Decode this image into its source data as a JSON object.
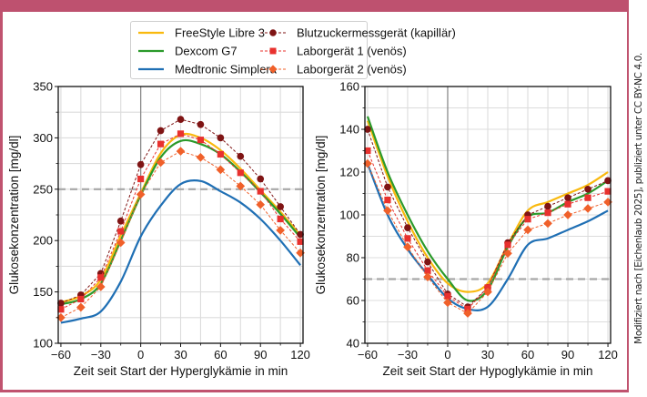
{
  "credit": "Modifiziert nach [Eichenlaub 2025], publiziert unter CC BY-NC 4.0.",
  "colors": {
    "frame": "#be516f",
    "libre": "#f9b90e",
    "dexcom": "#2b9a2b",
    "medtronic": "#1f6fb4",
    "blutzucker": "#7f1414",
    "labor1": "#e8312e",
    "labor2": "#f0602a",
    "threshold": "#a6a6a6"
  },
  "legend": {
    "items": [
      {
        "key": "libre",
        "label": "FreeStyle Libre 3",
        "style": "line"
      },
      {
        "key": "dexcom",
        "label": "Dexcom G7",
        "style": "line"
      },
      {
        "key": "medtronic",
        "label": "Medtronic Simplera",
        "style": "line"
      },
      {
        "key": "blutzucker",
        "label": "Blutzuckermessgerät (kapillär)",
        "style": "circle"
      },
      {
        "key": "labor1",
        "label": "Laborgerät 1 (venös)",
        "style": "square"
      },
      {
        "key": "labor2",
        "label": "Laborgerät 2 (venös)",
        "style": "diamond"
      }
    ]
  },
  "chart_data": [
    {
      "type": "line",
      "title": "",
      "xlabel": "Zeit seit Start der Hyperglykämie in min",
      "ylabel": "Glukosekonzentration [mg/dl]",
      "xlim": [
        -62,
        122
      ],
      "ylim": [
        100,
        350
      ],
      "xticks": [
        "-60",
        "-30",
        "0",
        "30",
        "60",
        "90",
        "120"
      ],
      "yticks": [
        "100",
        "150",
        "200",
        "250",
        "300",
        "350"
      ],
      "threshold": 250,
      "grid": true,
      "x": [
        -60,
        -45,
        -30,
        -15,
        0,
        15,
        30,
        45,
        60,
        75,
        90,
        105,
        120
      ],
      "series": [
        {
          "key": "libre",
          "name": "FreeStyle Libre 3",
          "values": [
            140,
            146,
            162,
            205,
            246,
            285,
            303,
            300,
            288,
            270,
            249,
            228,
            205
          ]
        },
        {
          "key": "dexcom",
          "name": "Dexcom G7",
          "values": [
            138,
            143,
            158,
            200,
            244,
            281,
            297,
            294,
            284,
            267,
            247,
            226,
            203
          ]
        },
        {
          "key": "medtronic",
          "name": "Medtronic Simplera",
          "values": [
            120,
            124,
            131,
            160,
            204,
            234,
            255,
            258,
            248,
            237,
            221,
            200,
            176
          ]
        },
        {
          "key": "blutzucker",
          "name": "Blutzuckermessgerät (kapillär)",
          "values": [
            139,
            147,
            168,
            219,
            274,
            307,
            318,
            313,
            300,
            282,
            260,
            233,
            206
          ]
        },
        {
          "key": "labor1",
          "name": "Laborgerät 1 (venös)",
          "values": [
            133,
            143,
            164,
            209,
            260,
            294,
            304,
            298,
            284,
            266,
            248,
            221,
            199
          ]
        },
        {
          "key": "labor2",
          "name": "Laborgerät 2 (venös)",
          "values": [
            125,
            135,
            155,
            198,
            245,
            276,
            287,
            281,
            269,
            253,
            235,
            210,
            188
          ]
        }
      ]
    },
    {
      "type": "line",
      "title": "",
      "xlabel": "Zeit seit Start der Hypoglykämie in min",
      "ylabel": "Glukosekonzentration [mg/dl]",
      "xlim": [
        -62,
        122
      ],
      "ylim": [
        40,
        160
      ],
      "xticks": [
        "-60",
        "-30",
        "0",
        "30",
        "60",
        "90",
        "120"
      ],
      "yticks": [
        "40",
        "60",
        "80",
        "100",
        "120",
        "140",
        "160"
      ],
      "threshold": 70,
      "grid": true,
      "x": [
        -60,
        -45,
        -30,
        -15,
        0,
        15,
        30,
        45,
        60,
        75,
        90,
        105,
        120
      ],
      "series": [
        {
          "key": "libre",
          "name": "FreeStyle Libre 3",
          "values": [
            144,
            118,
            97,
            80,
            68,
            64,
            68,
            86,
            102,
            106,
            110,
            114,
            120
          ]
        },
        {
          "key": "dexcom",
          "name": "Dexcom G7",
          "values": [
            146,
            120,
            100,
            83,
            70,
            60,
            65,
            85,
            99,
            101,
            106,
            110,
            116
          ]
        },
        {
          "key": "medtronic",
          "name": "Medtronic Simplera",
          "values": [
            124,
            100,
            84,
            72,
            61,
            56,
            57,
            70,
            86,
            89,
            93,
            97,
            102
          ]
        },
        {
          "key": "blutzucker",
          "name": "Blutzuckermessgerät (kapillär)",
          "values": [
            140,
            113,
            94,
            78,
            63,
            57,
            66,
            87,
            100,
            104,
            108,
            112,
            116
          ]
        },
        {
          "key": "labor1",
          "name": "Laborgerät 1 (venös)",
          "values": [
            130,
            107,
            89,
            74,
            62,
            56,
            66,
            86,
            98,
            101,
            105,
            108,
            111
          ]
        },
        {
          "key": "labor2",
          "name": "Laborgerät 2 (venös)",
          "values": [
            124,
            102,
            85,
            71,
            59,
            54,
            64,
            82,
            93,
            96,
            100,
            103,
            106
          ]
        }
      ]
    }
  ]
}
